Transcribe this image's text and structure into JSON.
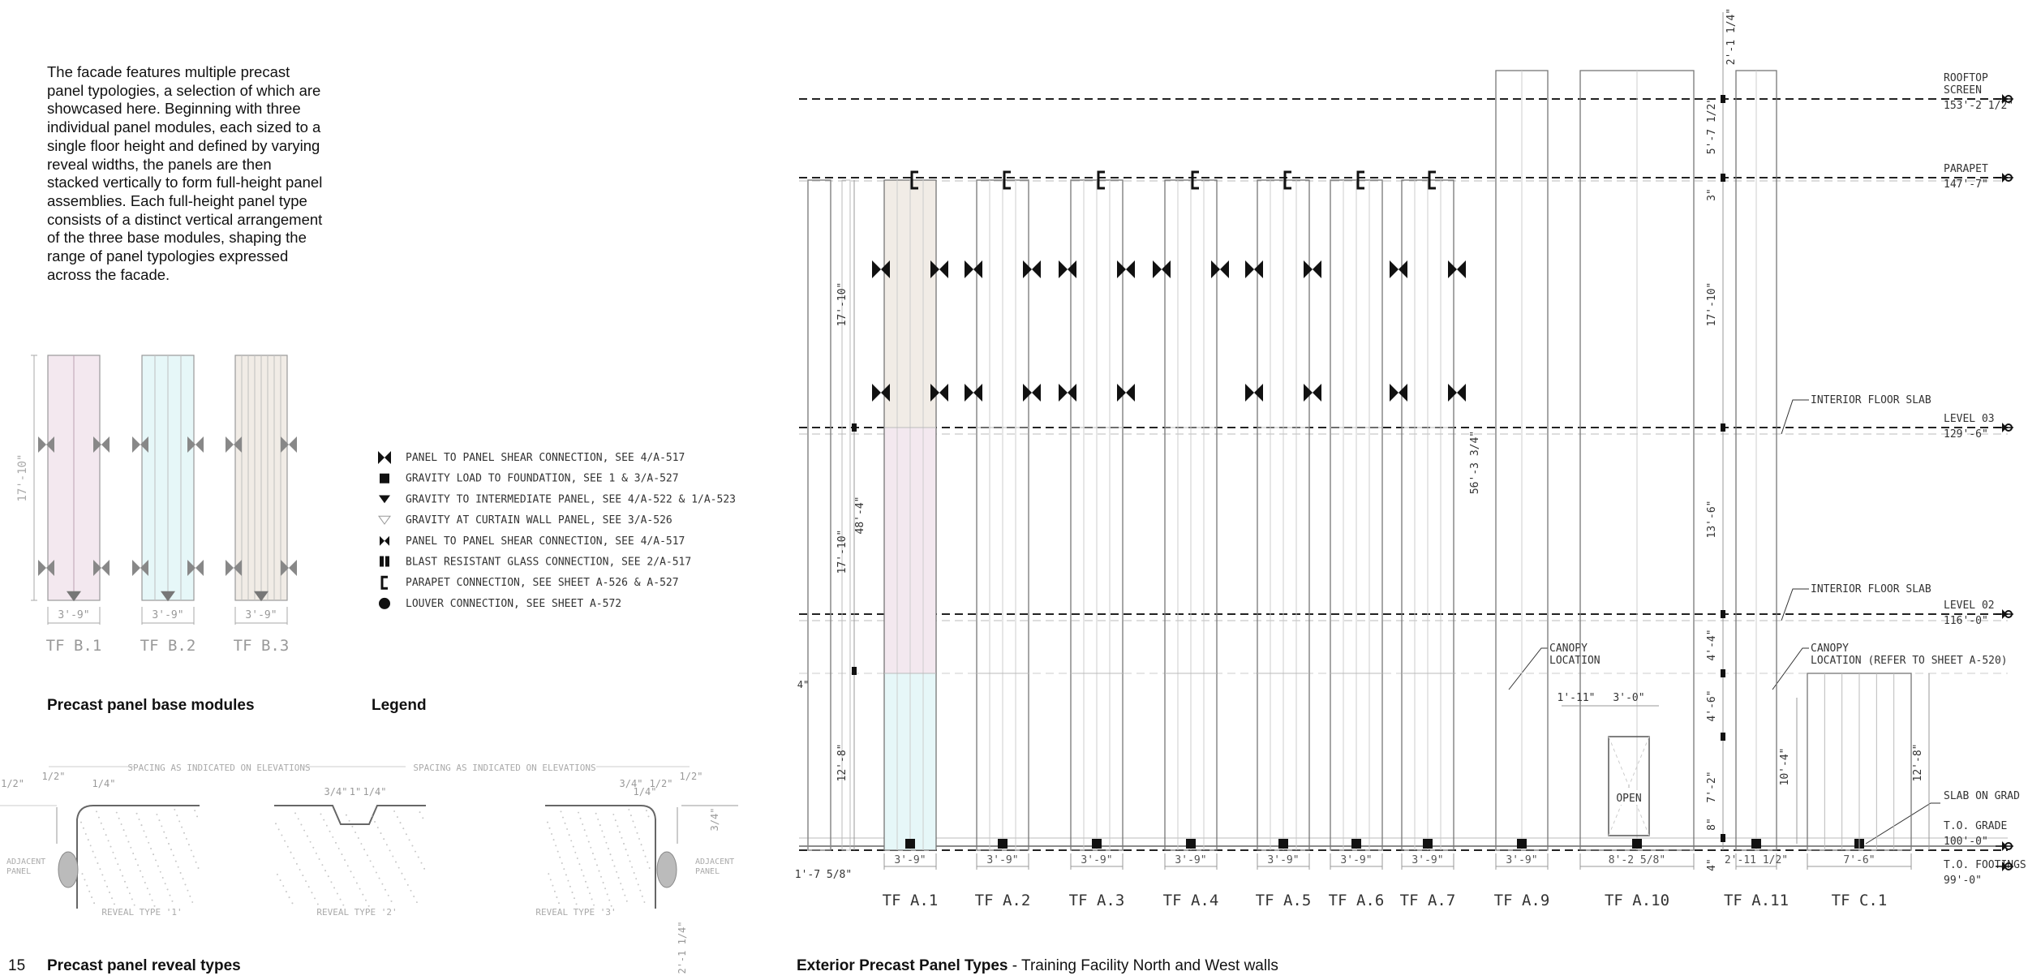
{
  "page_number": "15",
  "intro_text": "The facade features multiple precast panel typologies, a selection of which are showcased here. Beginning with three individual panel modules, each sized to a single floor height and defined by varying reveal widths, the panels are then stacked vertically to form full-height panel assemblies. Each full-height panel type consists of a distinct vertical arrangement of the three base modules, shaping the range of panel typologies expressed across the facade.",
  "base_modules": {
    "title": "Precast panel base modules",
    "height_dim": "17'-10\"",
    "modules": [
      {
        "label": "TF  B.1",
        "width": "3'-9\"",
        "fill": "#f3e8ef"
      },
      {
        "label": "TF  B.2",
        "width": "3'-9\"",
        "fill": "#e6f7f8"
      },
      {
        "label": "TF  B.3",
        "width": "3'-9\"",
        "fill": "#f1ece6"
      }
    ]
  },
  "legend": {
    "title": "Legend",
    "items": [
      {
        "icon": "shear-connection-icon",
        "text": "PANEL TO PANEL SHEAR CONNECTION, SEE 4/A-517"
      },
      {
        "icon": "gravity-load-square-icon",
        "text": "GRAVITY LOAD TO FOUNDATION, SEE 1 & 3/A-527"
      },
      {
        "icon": "gravity-triangle-icon",
        "text": "GRAVITY TO INTERMEDIATE PANEL, SEE 4/A-522 & 1/A-523"
      },
      {
        "icon": "curtain-wall-triangle-icon",
        "text": "GRAVITY AT CURTAIN WALL PANEL, SEE 3/A-526"
      },
      {
        "icon": "shear-connection-small-icon",
        "text": "PANEL TO PANEL SHEAR CONNECTION, SEE 4/A-517"
      },
      {
        "icon": "blast-glass-icon",
        "text": "BLAST RESISTANT GLASS CONNECTION, SEE 2/A-517"
      },
      {
        "icon": "parapet-bracket-icon",
        "text": "PARAPET CONNECTION, SEE SHEET A-526 & A-527"
      },
      {
        "icon": "louver-circle-icon",
        "text": "LOUVER CONNECTION, SEE SHEET A-572"
      }
    ]
  },
  "reveal_types": {
    "title": "Precast panel reveal types",
    "spacing_note": "SPACING AS INDICATED ON ELEVATIONS",
    "adjacent_label": [
      "ADJACENT",
      "PANEL"
    ],
    "types": [
      {
        "name": "REVEAL TYPE '1'",
        "dims": [
          "1/2\"",
          "1/2\"",
          "1/4\""
        ]
      },
      {
        "name": "REVEAL TYPE '2'",
        "dims": [
          "3/4\"",
          "1\"",
          "1/4\""
        ]
      },
      {
        "name": "REVEAL TYPE '3'",
        "dims": [
          "3/4\"",
          "1/2\"",
          "1/2\"",
          "1/4\""
        ]
      }
    ],
    "side_dims": [
      "3/4\"",
      "2'-1 1/4\""
    ]
  },
  "elevation": {
    "title_bold": "Exterior Precast Panel Types",
    "title_rest": " - Training Facility North and West walls",
    "levels": [
      {
        "name": [
          "ROOFTOP",
          "SCREEN"
        ],
        "elev": "153'-2 1/2\""
      },
      {
        "name": [
          "PARAPET"
        ],
        "elev": "147'-7\""
      },
      {
        "name": [
          "LEVEL 03"
        ],
        "elev": "129'-6\""
      },
      {
        "name": [
          "LEVEL 02"
        ],
        "elev": "116'-0\""
      },
      {
        "name": [
          "T.O. GRADE"
        ],
        "elev": "100'-0\""
      },
      {
        "name": [
          "T.O. FOOTINGS"
        ],
        "elev": "99'-0\""
      },
      {
        "name": [
          "SLAB ON GRAD"
        ],
        "elev": ""
      }
    ],
    "panels": [
      {
        "label": "TF  A.1",
        "width": "3'-9\""
      },
      {
        "label": "TF  A.2",
        "width": "3'-9\""
      },
      {
        "label": "TF  A.3",
        "width": "3'-9\""
      },
      {
        "label": "TF  A.4",
        "width": "3'-9\""
      },
      {
        "label": "TF  A.5",
        "width": "3'-9\""
      },
      {
        "label": "TF  A.6",
        "width": "3'-9\""
      },
      {
        "label": "TF  A.7",
        "width": "3'-9\""
      },
      {
        "label": "TF  A.9",
        "width": "3'-9\""
      },
      {
        "label": "TF  A.10",
        "width": "8'-2 5/8\""
      },
      {
        "label": "TF  A.11",
        "width": "2'-11 1/2\""
      },
      {
        "label": "TF  C.1",
        "width": "7'-6\""
      }
    ],
    "notes": {
      "interior_floor_slab": "INTERIOR FLOOR SLAB",
      "canopy_location": [
        "CANOPY",
        "LOCATION"
      ],
      "canopy_location_ref": [
        "CANOPY",
        "LOCATION (REFER TO SHEET A-520)"
      ],
      "open": "OPEN"
    },
    "dims": {
      "left_top": "17'-10\"",
      "left_mid": "17'-10\"",
      "left_total": "48'-4\"",
      "left_bottom": "12'-8\"",
      "left_offset": "4\"",
      "left_width": "1'-7 5/8\"",
      "a9_height": "56'-3 3/4\"",
      "right_top": "2'-1 1/4\"",
      "right_a": "5'-7 1/2\"",
      "right_b": "3\"",
      "right_c": "17'-10\"",
      "right_d": "13'-6\"",
      "right_e": "4'-4\"",
      "right_f": "4'-6\"",
      "right_g": "7'-2\"",
      "right_h": "8\"",
      "right_i": "4\"",
      "open_w1": "1'-11\"",
      "open_w2": "3'-0\"",
      "c1_height": "12'-8\"",
      "c1_side": "10'-4\""
    }
  }
}
